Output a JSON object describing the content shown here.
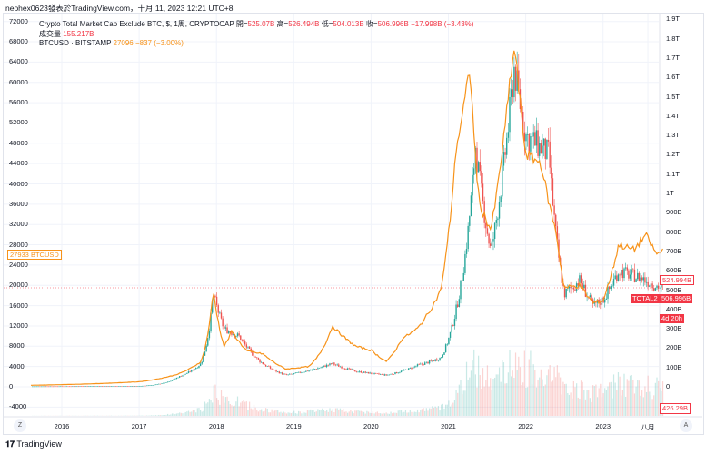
{
  "header": {
    "publisher": "neohex0623發表於TradingView.com，十月 11, 2023 12:21 UTC+8"
  },
  "legend": {
    "series1": {
      "title": "Crypto Total Market Cap Exclude BTC, $, 1周, CRYPTOCAP",
      "open_label": "開=",
      "open": "525.07B",
      "high_label": "高=",
      "high": "526.494B",
      "low_label": "低=",
      "low": "504.013B",
      "close_label": "收=",
      "close": "506.996B",
      "change": "−17.998B (−3.43%)"
    },
    "volume": {
      "label": "成交量",
      "value": "155.217B"
    },
    "series2": {
      "title": "BTCUSD · BITSTAMP",
      "price": "27096",
      "change": "−837 (−3.00%)"
    }
  },
  "left_axis": [
    "72000",
    "68000",
    "64000",
    "60000",
    "56000",
    "52000",
    "48000",
    "44000",
    "40000",
    "36000",
    "32000",
    "28000",
    "24000",
    "20000",
    "16000",
    "12000",
    "8000",
    "4000",
    "0",
    "-4000"
  ],
  "right_axis": [
    "1.9T",
    "1.8T",
    "1.7T",
    "1.6T",
    "1.5T",
    "1.4T",
    "1.3T",
    "1.2T",
    "1.1T",
    "1T",
    "900B",
    "800B",
    "700B",
    "600B",
    "500B",
    "400B",
    "300B",
    "200B",
    "100B",
    "0"
  ],
  "tags": {
    "btc_price": "27933",
    "btc_symbol": "BTCUSD",
    "total2_prev": "524.994B",
    "total2_symbol": "TOTAL2",
    "total2_price": "506.996B",
    "countdown": "4d 20h",
    "volume": "426.29B"
  },
  "x_axis": [
    "2016",
    "2017",
    "2018",
    "2019",
    "2020",
    "2021",
    "2022",
    "2023",
    "八月"
  ],
  "buttons": {
    "zoom": "Z",
    "auto": "A"
  },
  "footer": {
    "brand": "TradingView"
  },
  "colors": {
    "up": "#26a69a",
    "down": "#ef5350",
    "btc": "#f7931a",
    "grid": "#f0f3fa"
  },
  "chart_data": {
    "type": "line",
    "series": [
      {
        "name": "BTCUSD",
        "unit": "USD",
        "points": [
          [
            2015.6,
            300
          ],
          [
            2016.0,
            430
          ],
          [
            2016.5,
            650
          ],
          [
            2017.0,
            1000
          ],
          [
            2017.5,
            2500
          ],
          [
            2017.8,
            5000
          ],
          [
            2017.96,
            19000
          ],
          [
            2018.1,
            8000
          ],
          [
            2018.2,
            11000
          ],
          [
            2018.4,
            7000
          ],
          [
            2018.6,
            6500
          ],
          [
            2018.9,
            3500
          ],
          [
            2019.2,
            4000
          ],
          [
            2019.5,
            12000
          ],
          [
            2019.8,
            8000
          ],
          [
            2020.0,
            7200
          ],
          [
            2020.2,
            5000
          ],
          [
            2020.4,
            9500
          ],
          [
            2020.6,
            11500
          ],
          [
            2020.9,
            19000
          ],
          [
            2021.0,
            30000
          ],
          [
            2021.1,
            47000
          ],
          [
            2021.28,
            63000
          ],
          [
            2021.4,
            36000
          ],
          [
            2021.55,
            31000
          ],
          [
            2021.7,
            47000
          ],
          [
            2021.8,
            61000
          ],
          [
            2021.86,
            67000
          ],
          [
            2022.0,
            46000
          ],
          [
            2022.2,
            44000
          ],
          [
            2022.4,
            30000
          ],
          [
            2022.5,
            19500
          ],
          [
            2022.7,
            20000
          ],
          [
            2022.87,
            16500
          ],
          [
            2023.0,
            17000
          ],
          [
            2023.2,
            28000
          ],
          [
            2023.4,
            27000
          ],
          [
            2023.55,
            30000
          ],
          [
            2023.7,
            26000
          ],
          [
            2023.78,
            27100
          ]
        ]
      },
      {
        "name": "TOTAL2",
        "unit": "B USD",
        "points": [
          [
            2015.6,
            2
          ],
          [
            2017.0,
            4
          ],
          [
            2017.5,
            50
          ],
          [
            2017.8,
            120
          ],
          [
            2017.96,
            480
          ],
          [
            2018.1,
            300
          ],
          [
            2018.3,
            260
          ],
          [
            2018.6,
            120
          ],
          [
            2018.9,
            60
          ],
          [
            2019.5,
            120
          ],
          [
            2019.8,
            80
          ],
          [
            2020.2,
            60
          ],
          [
            2020.6,
            110
          ],
          [
            2020.9,
            150
          ],
          [
            2021.1,
            400
          ],
          [
            2021.35,
            1250
          ],
          [
            2021.55,
            700
          ],
          [
            2021.7,
            1100
          ],
          [
            2021.85,
            1650
          ],
          [
            2022.0,
            1300
          ],
          [
            2022.3,
            1200
          ],
          [
            2022.45,
            600
          ],
          [
            2022.5,
            480
          ],
          [
            2022.7,
            550
          ],
          [
            2022.87,
            420
          ],
          [
            2023.0,
            450
          ],
          [
            2023.2,
            600
          ],
          [
            2023.5,
            560
          ],
          [
            2023.78,
            507
          ]
        ]
      }
    ],
    "left_ylim": [
      -4000,
      72000
    ],
    "right_ylim": [
      0,
      1900
    ],
    "xlim": [
      2015.6,
      2023.8
    ]
  }
}
